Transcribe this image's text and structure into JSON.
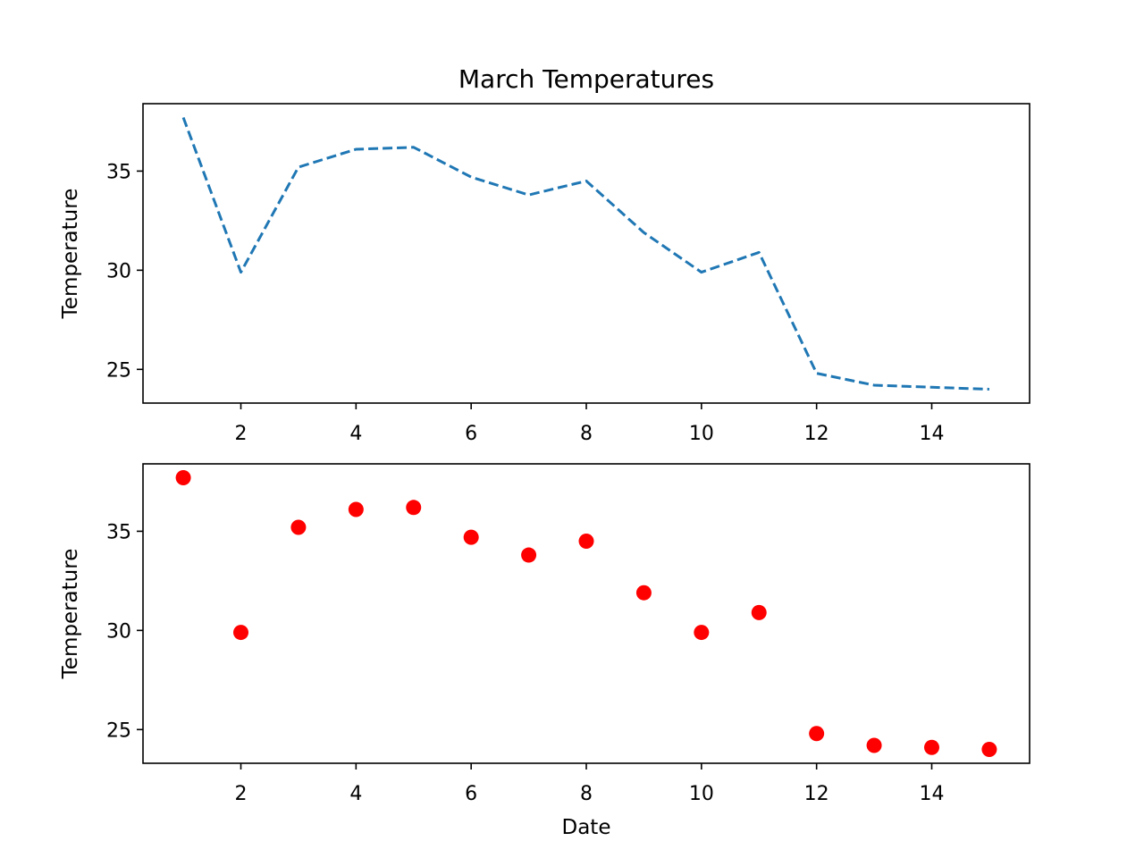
{
  "chart_data": [
    {
      "type": "line",
      "title": "March Temperatures",
      "xlabel": "",
      "ylabel": "Temperature",
      "xlim": [
        0.3,
        15.7
      ],
      "ylim": [
        23.3,
        38.4
      ],
      "x_ticks": [
        2,
        4,
        6,
        8,
        10,
        12,
        14
      ],
      "y_ticks": [
        25,
        30,
        35
      ],
      "grid": false,
      "line_style": "dashed",
      "color": "#1f77b4",
      "x": [
        1,
        2,
        3,
        4,
        5,
        6,
        7,
        8,
        9,
        10,
        11,
        12,
        13,
        14,
        15
      ],
      "y": [
        37.7,
        29.9,
        35.2,
        36.1,
        36.2,
        34.7,
        33.8,
        34.5,
        31.9,
        29.9,
        30.9,
        24.8,
        24.2,
        24.1,
        24.0
      ]
    },
    {
      "type": "scatter",
      "title": "",
      "xlabel": "Date",
      "ylabel": "Temperature",
      "xlim": [
        0.3,
        15.7
      ],
      "ylim": [
        23.3,
        38.4
      ],
      "x_ticks": [
        2,
        4,
        6,
        8,
        10,
        12,
        14
      ],
      "y_ticks": [
        25,
        30,
        35
      ],
      "grid": false,
      "marker": "circle",
      "color": "#ff0000",
      "x": [
        1,
        2,
        3,
        4,
        5,
        6,
        7,
        8,
        9,
        10,
        11,
        12,
        13,
        14,
        15
      ],
      "y": [
        37.7,
        29.9,
        35.2,
        36.1,
        36.2,
        34.7,
        33.8,
        34.5,
        31.9,
        29.9,
        30.9,
        24.8,
        24.2,
        24.1,
        24.0
      ]
    }
  ]
}
